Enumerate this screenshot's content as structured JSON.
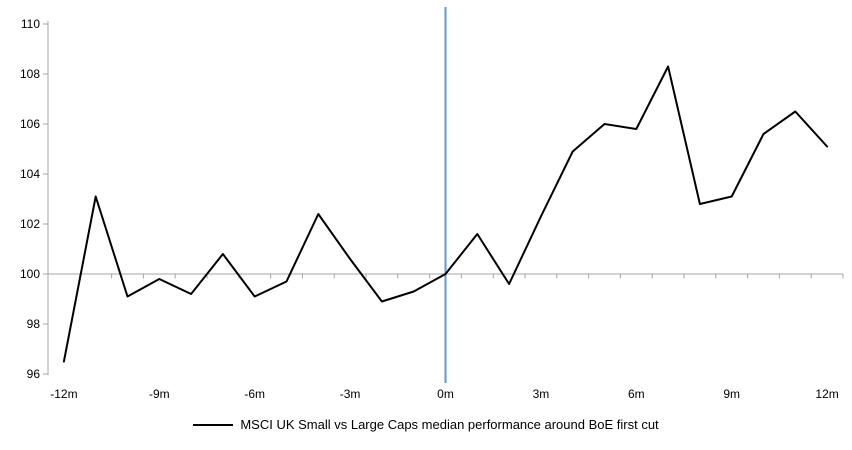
{
  "chart_data": {
    "type": "line",
    "title": "",
    "x": [
      -12,
      -11,
      -10,
      -9,
      -8,
      -7,
      -6,
      -5,
      -4,
      -3,
      -2,
      -1,
      0,
      1,
      2,
      3,
      4,
      5,
      6,
      7,
      8,
      9,
      10,
      11,
      12
    ],
    "values": [
      96.5,
      103.1,
      99.1,
      99.8,
      99.2,
      100.8,
      99.1,
      99.7,
      102.4,
      100.6,
      98.9,
      99.3,
      100.0,
      101.6,
      99.6,
      102.3,
      104.9,
      106.0,
      105.8,
      108.3,
      102.8,
      103.1,
      105.6,
      106.5,
      105.1
    ],
    "series_name": "MSCI UK Small vs Large Caps median performance around BoE first cut",
    "y_ticks": [
      96,
      98,
      100,
      102,
      104,
      106,
      108,
      110
    ],
    "x_tick_values": [
      -12,
      -9,
      -6,
      -3,
      0,
      3,
      6,
      9,
      12
    ],
    "x_tick_labels": [
      "-12m",
      "-9m",
      "-6m",
      "-3m",
      "0m",
      "3m",
      "6m",
      "9m",
      "12m"
    ],
    "ylim": [
      96,
      110
    ],
    "baseline_value": 100,
    "event_line_x": 0,
    "grid": "baseline-only",
    "legend_position": "bottom-center",
    "colors": {
      "series": "#000000",
      "event_line": "#5B9BD5",
      "baseline": "#A6A6A6",
      "axis": "#A6A6A6",
      "text": "#000000"
    }
  },
  "legend": {
    "label": "MSCI UK Small vs Large Caps median performance around BoE first cut"
  }
}
